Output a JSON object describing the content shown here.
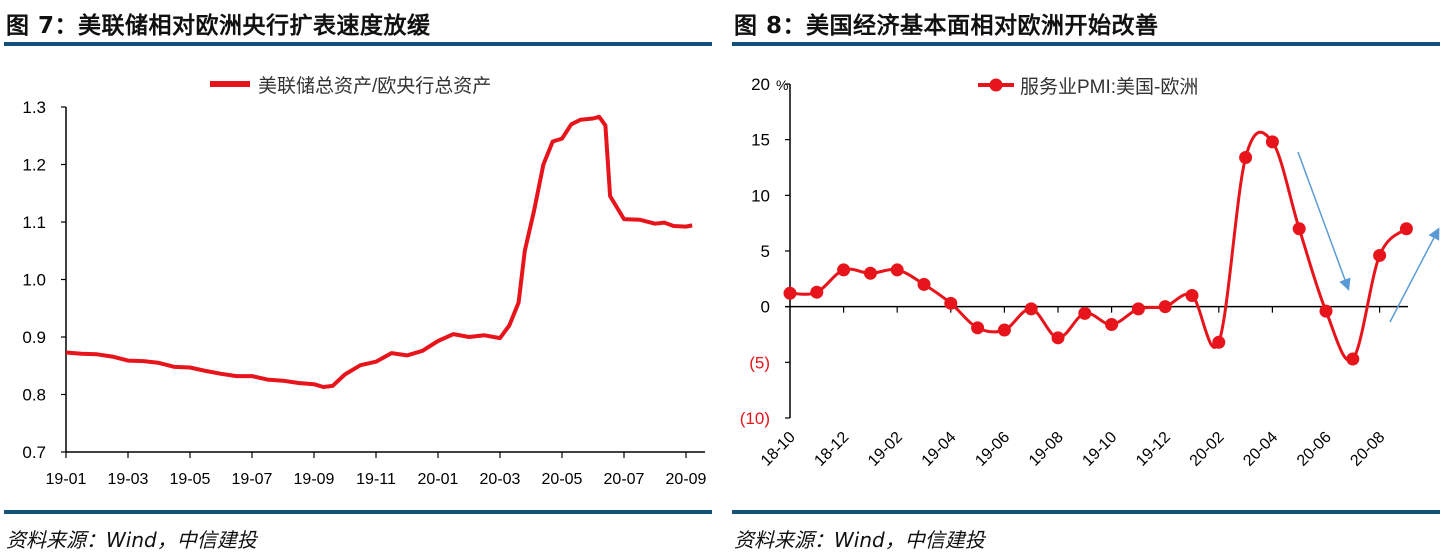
{
  "figures": [
    {
      "title": "图 7：美联储相对欧洲央行扩表速度放缓",
      "source": "资料来源：Wind，中信建投"
    },
    {
      "title": "图 8：美国经济基本面相对欧洲开始改善",
      "source": "资料来源：Wind，中信建投"
    }
  ],
  "colors": {
    "series": "#e8141b",
    "rule": "#15507c",
    "arrow": "#5b9bd5",
    "negative_label": "#e8141b"
  },
  "chart_data": [
    {
      "type": "line",
      "title": "图 7：美联储相对欧洲央行扩表速度放缓",
      "legend": "美联储总资产/欧央行总资产",
      "legend_position": "top",
      "xlabel": "",
      "ylabel": "",
      "ylim": [
        0.7,
        1.3
      ],
      "yticks": [
        "0.7",
        "0.8",
        "0.9",
        "1.0",
        "1.1",
        "1.2",
        "1.3"
      ],
      "xticks": [
        "19-01",
        "19-03",
        "19-05",
        "19-07",
        "19-09",
        "19-11",
        "20-01",
        "20-03",
        "20-05",
        "20-07",
        "20-09"
      ],
      "x_unit": "months since 19-01",
      "x": [
        0,
        0.5,
        1,
        1.5,
        2,
        2.5,
        3,
        3.5,
        4,
        4.5,
        5,
        5.5,
        6,
        6.5,
        7,
        7.5,
        8,
        8.3,
        8.6,
        9,
        9.5,
        10,
        10.5,
        11,
        11.5,
        12,
        12.5,
        13,
        13.5,
        14,
        14.3,
        14.6,
        14.8,
        15.1,
        15.4,
        15.7,
        16,
        16.3,
        16.6,
        17,
        17.2,
        17.4,
        17.55,
        18,
        18.5,
        19,
        19.3,
        19.6,
        20,
        20.2
      ],
      "values": [
        0.873,
        0.871,
        0.87,
        0.866,
        0.859,
        0.858,
        0.855,
        0.848,
        0.847,
        0.841,
        0.836,
        0.832,
        0.832,
        0.826,
        0.824,
        0.82,
        0.818,
        0.813,
        0.815,
        0.835,
        0.851,
        0.857,
        0.872,
        0.868,
        0.876,
        0.893,
        0.905,
        0.9,
        0.903,
        0.898,
        0.92,
        0.96,
        1.05,
        1.12,
        1.2,
        1.24,
        1.245,
        1.27,
        1.278,
        1.28,
        1.283,
        1.268,
        1.145,
        1.105,
        1.104,
        1.097,
        1.099,
        1.093,
        1.092,
        1.094
      ],
      "grid": false
    },
    {
      "type": "line",
      "title": "图 8：美国经济基本面相对欧洲开始改善",
      "legend": "服务业PMI:美国-欧洲",
      "legend_position": "top",
      "unit": "%",
      "ylim": [
        -10,
        20
      ],
      "yticks": [
        "(10)",
        "(5)",
        "0",
        "5",
        "10",
        "15",
        "20"
      ],
      "ytick_values": [
        -10,
        -5,
        0,
        5,
        10,
        15,
        20
      ],
      "categories": [
        "18-10",
        "18-11",
        "18-12",
        "19-01",
        "19-02",
        "19-03",
        "19-04",
        "19-05",
        "19-06",
        "19-07",
        "19-08",
        "19-09",
        "19-10",
        "19-11",
        "19-12",
        "20-01",
        "20-02",
        "20-03",
        "20-04",
        "20-05",
        "20-06",
        "20-07",
        "20-08",
        "20-09"
      ],
      "xtick_labels": [
        "18-10",
        "18-12",
        "19-02",
        "19-04",
        "19-06",
        "19-08",
        "19-10",
        "19-12",
        "20-02",
        "20-04",
        "20-06",
        "20-08"
      ],
      "values": [
        1.2,
        1.3,
        3.3,
        3.0,
        3.3,
        2.0,
        0.3,
        -1.9,
        -2.1,
        -0.2,
        -2.8,
        -0.6,
        -1.6,
        -0.2,
        0.0,
        1.0,
        -3.2,
        13.4,
        14.8,
        7.0,
        -0.4,
        -4.7,
        4.6,
        7.0
      ],
      "annotations": [
        "down-arrow",
        "up-arrow"
      ],
      "grid": false
    }
  ]
}
